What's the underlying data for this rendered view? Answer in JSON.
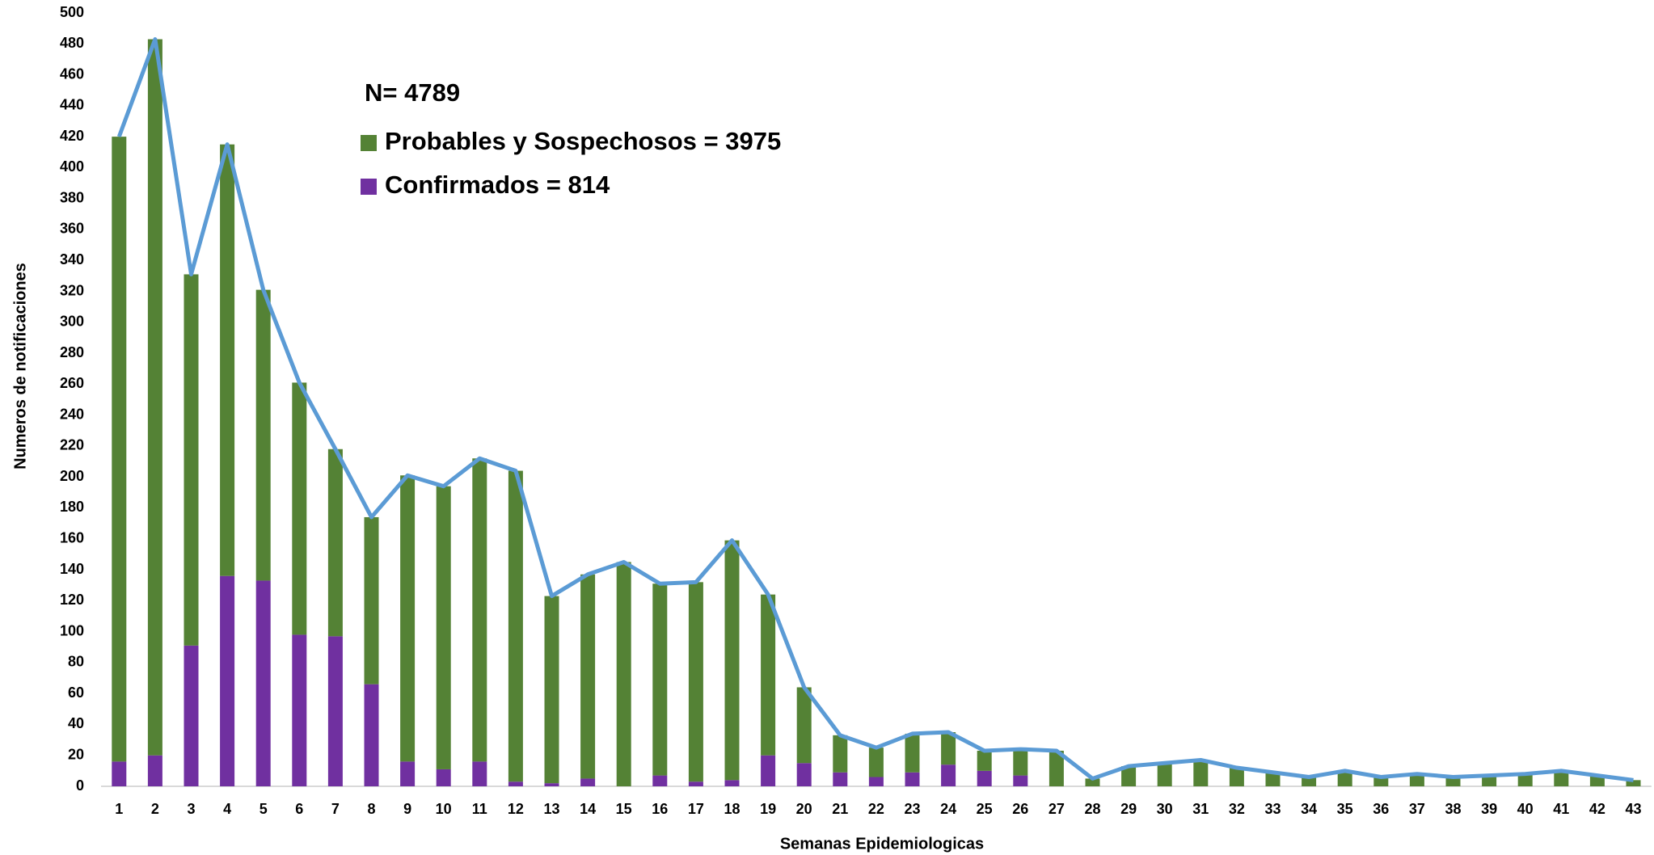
{
  "chart_data": {
    "type": "bar",
    "stacked": true,
    "x_label": "Semanas Epidemiologicas",
    "y_label": "Numeros de notificaciones",
    "annotation": "N= 4789",
    "categories": [
      "1",
      "2",
      "3",
      "4",
      "5",
      "6",
      "7",
      "8",
      "9",
      "10",
      "11",
      "12",
      "13",
      "14",
      "15",
      "16",
      "17",
      "18",
      "19",
      "20",
      "21",
      "22",
      "23",
      "24",
      "25",
      "26",
      "27",
      "28",
      "29",
      "30",
      "31",
      "32",
      "33",
      "34",
      "35",
      "36",
      "37",
      "38",
      "39",
      "40",
      "41",
      "42",
      "43"
    ],
    "series": [
      {
        "name": "Confirmados = 814",
        "color": "#7030a0",
        "type": "bar",
        "values": [
          16,
          20,
          91,
          136,
          133,
          98,
          97,
          66,
          16,
          11,
          16,
          3,
          2,
          5,
          0,
          7,
          3,
          4,
          20,
          15,
          9,
          6,
          9,
          14,
          10,
          7,
          0,
          0,
          0,
          0,
          0,
          0,
          0,
          0,
          0,
          0,
          0,
          0,
          0,
          0,
          0,
          0,
          0
        ]
      },
      {
        "name": "Probables y Sospechosos = 3975",
        "color": "#548235",
        "type": "bar",
        "values": [
          404,
          463,
          240,
          279,
          188,
          163,
          121,
          108,
          185,
          183,
          196,
          201,
          121,
          132,
          145,
          124,
          129,
          155,
          104,
          49,
          24,
          19,
          25,
          21,
          13,
          17,
          23,
          5,
          13,
          15,
          17,
          12,
          9,
          6,
          10,
          6,
          8,
          6,
          7,
          8,
          10,
          7,
          4
        ]
      },
      {
        "color": "#5b9bd5",
        "type": "line",
        "values": [
          420,
          483,
          331,
          415,
          321,
          261,
          218,
          174,
          201,
          194,
          212,
          204,
          123,
          137,
          145,
          131,
          132,
          159,
          124,
          64,
          33,
          25,
          34,
          35,
          23,
          24,
          23,
          5,
          13,
          15,
          17,
          12,
          9,
          6,
          10,
          6,
          8,
          6,
          7,
          8,
          10,
          7,
          4
        ]
      }
    ],
    "ylim": [
      0,
      500
    ],
    "yticks": [
      0,
      20,
      40,
      60,
      80,
      100,
      120,
      140,
      160,
      180,
      200,
      220,
      240,
      260,
      280,
      300,
      320,
      340,
      360,
      380,
      400,
      420,
      440,
      460,
      480,
      500
    ],
    "grid": false
  }
}
